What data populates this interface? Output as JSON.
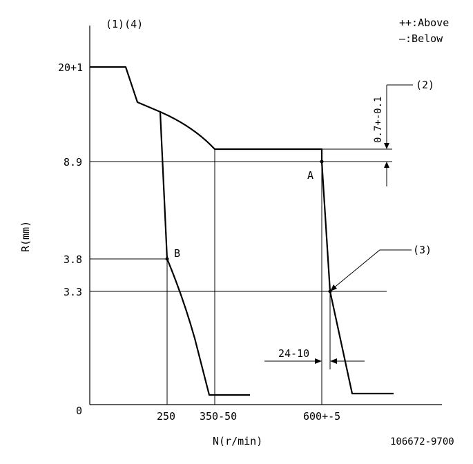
{
  "chart_data": {
    "type": "line",
    "xlabel": "N(r/min)",
    "ylabel": "R(mm)",
    "header": "(1)(4)",
    "legend": [
      "++:Above",
      "—:Below"
    ],
    "drawing_number": "106672-9700",
    "x_tick_labels": [
      "250",
      "350-50",
      "600+-5"
    ],
    "y_tick_labels": [
      "0",
      "3.8",
      "3.3",
      "8.9",
      "20+1"
    ],
    "points": {
      "A": "A",
      "B": "B"
    },
    "callouts": {
      "c2": "(2)",
      "c3": "(3)",
      "tol_07": "0.7+-0.1",
      "tol_24": "24-10"
    }
  }
}
